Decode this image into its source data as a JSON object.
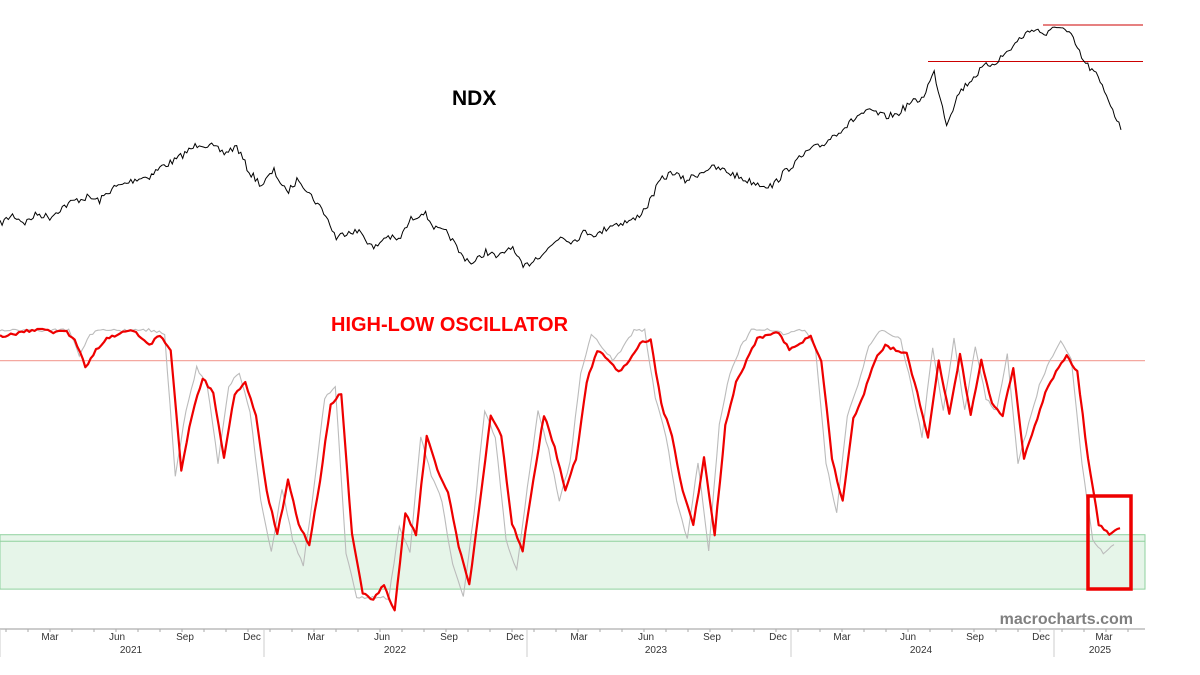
{
  "chart_data": [
    {
      "type": "line",
      "title": "NDX",
      "series": [],
      "values": [
        12850,
        13250,
        12900,
        13300,
        13150,
        13600,
        13900,
        14050,
        13900,
        14450,
        14650,
        14900,
        15000,
        15450,
        15700,
        16100,
        16500,
        16350,
        16050,
        16350,
        15200,
        14600,
        15250,
        14250,
        14900,
        14100,
        13400,
        12200,
        12550,
        12450,
        11700,
        12300,
        12100,
        13050,
        13400,
        12600,
        12400,
        11450,
        11050,
        11600,
        11300,
        11850,
        10850,
        11300,
        11700,
        12300,
        12050,
        12500,
        12350,
        12800,
        12900,
        13050,
        13700,
        14800,
        15200,
        14800,
        15100,
        15400,
        15300,
        15050,
        14800,
        14650,
        14550,
        15200,
        15700,
        16200,
        16400,
        16900,
        17300,
        17800,
        17950,
        17700,
        17800,
        18300,
        18500,
        19700,
        17400,
        18800,
        19400,
        19950,
        20200,
        20700,
        21300,
        21700,
        21400,
        21850,
        21350,
        20200,
        19600,
        18500,
        17100
      ],
      "resistance_levels": [
        21850,
        20200
      ],
      "label": "NDX",
      "color": "#000000"
    },
    {
      "type": "line",
      "title": "HIGH-LOW OSCILLATOR",
      "series": [],
      "x_axis": {
        "months": [
          "Mar",
          "Jun",
          "Sep",
          "Dec",
          "Mar",
          "Jun",
          "Sep",
          "Dec",
          "Mar",
          "Jun",
          "Sep",
          "Dec",
          "Mar",
          "Jun",
          "Sep",
          "Dec",
          "Mar"
        ],
        "years": [
          "2021",
          "2022",
          "2023",
          "2024",
          "2025"
        ]
      },
      "values": [
        0.96,
        0.97,
        0.98,
        0.99,
        0.99,
        0.98,
        0.99,
        0.95,
        0.82,
        0.9,
        0.95,
        0.97,
        0.99,
        0.97,
        0.92,
        0.97,
        0.9,
        0.35,
        0.6,
        0.77,
        0.7,
        0.4,
        0.7,
        0.75,
        0.6,
        0.25,
        0.05,
        0.3,
        0.1,
        0.0,
        0.3,
        0.65,
        0.7,
        0.05,
        -0.22,
        -0.25,
        -0.18,
        -0.3,
        0.15,
        0.05,
        0.5,
        0.35,
        0.25,
        0.0,
        -0.18,
        0.2,
        0.6,
        0.5,
        0.1,
        -0.02,
        0.3,
        0.6,
        0.45,
        0.25,
        0.4,
        0.75,
        0.9,
        0.85,
        0.8,
        0.85,
        0.93,
        0.95,
        0.65,
        0.5,
        0.25,
        0.1,
        0.4,
        0.05,
        0.55,
        0.75,
        0.85,
        0.95,
        0.97,
        0.98,
        0.9,
        0.93,
        0.96,
        0.85,
        0.4,
        0.2,
        0.58,
        0.7,
        0.85,
        0.92,
        0.9,
        0.88,
        0.7,
        0.5,
        0.85,
        0.6,
        0.88,
        0.6,
        0.85,
        0.65,
        0.6,
        0.82,
        0.4,
        0.55,
        0.7,
        0.8,
        0.87,
        0.8,
        0.4,
        0.1,
        0.05,
        0.08
      ],
      "overbought_level": 0.85,
      "oversold_zone": [
        -0.2,
        0.05
      ],
      "highlight_box": "last values",
      "label": "HIGH-LOW OSCILLATOR",
      "color": "#ee0000",
      "shadow_color": "#bbbbbb"
    }
  ],
  "watermark": "macrocharts.com",
  "colors": {
    "ndx_line": "#000000",
    "oscillator_line": "#ee0000",
    "oscillator_shadow": "#bbbbbb",
    "resistance": "#cc0000",
    "overbought_line": "#f4a8a0",
    "oversold_fill": "#e6f5e9",
    "oversold_stroke": "#8fd19e",
    "highlight_box": "#ee0000"
  }
}
